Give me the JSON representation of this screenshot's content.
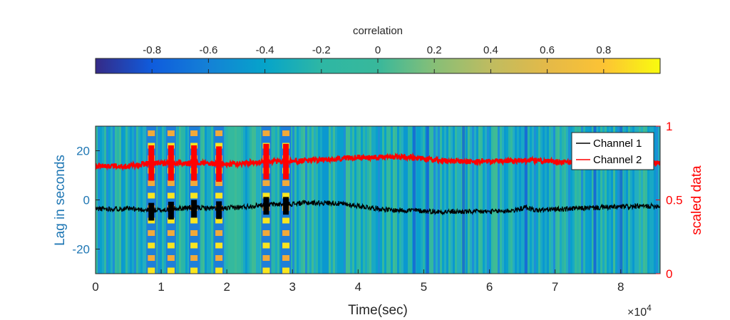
{
  "chart_data": [
    {
      "type": "heatmap",
      "colorbar": {
        "label": "correlation",
        "ticks": [
          -0.8,
          -0.6,
          -0.4,
          -0.2,
          0,
          0.2,
          0.4,
          0.6,
          0.8
        ],
        "tick_labels": [
          "-0.8",
          "-0.6",
          "-0.4",
          "-0.2",
          "0",
          "0.2",
          "0.4",
          "0.6",
          "0.8"
        ],
        "range": [
          -1,
          1
        ],
        "colormap": "parula",
        "position": "top"
      },
      "xlabel": "Time(sec)",
      "x_multiplier": "×10",
      "x_multiplier_exp": "4",
      "xlim": [
        0,
        86000
      ],
      "x_ticks": [
        0,
        10000,
        20000,
        30000,
        40000,
        50000,
        60000,
        70000,
        80000
      ],
      "x_tick_labels": [
        "0",
        "1",
        "2",
        "3",
        "4",
        "5",
        "6",
        "7",
        "8"
      ],
      "ylabel": "Lag in seconds",
      "ylim": [
        30,
        -30
      ],
      "y_ticks": [
        -20,
        0,
        20
      ],
      "y_tick_labels": [
        "-20",
        "0",
        "20"
      ],
      "y_direction": "reversed",
      "high_correlation_bursts_x": [
        8500,
        11500,
        15000,
        18800,
        26000,
        29000
      ],
      "blue_stripes_x": [
        48500,
        50500,
        56000,
        65500,
        76000,
        80000
      ]
    },
    {
      "type": "line",
      "y2label": "scaled data",
      "y2lim": [
        0,
        1
      ],
      "y2_ticks": [
        0,
        0.5,
        1
      ],
      "y2_tick_labels": [
        "0",
        "0.5",
        "1"
      ],
      "legend_position": "top-right",
      "series": [
        {
          "name": "Channel 1",
          "color": "#000000",
          "x": [
            0,
            5000,
            8500,
            10000,
            12000,
            15000,
            19000,
            22000,
            26000,
            29000,
            32000,
            36000,
            40000,
            45000,
            48000,
            52000,
            56000,
            60000,
            64000,
            65500,
            67000,
            72000,
            78000,
            86000
          ],
          "y": [
            0.44,
            0.44,
            0.43,
            0.43,
            0.44,
            0.45,
            0.44,
            0.45,
            0.47,
            0.47,
            0.48,
            0.48,
            0.46,
            0.43,
            0.43,
            0.42,
            0.42,
            0.42,
            0.43,
            0.45,
            0.43,
            0.44,
            0.45,
            0.46
          ]
        },
        {
          "name": "Channel 2",
          "color": "#ff0000",
          "x": [
            0,
            5000,
            8500,
            12000,
            16000,
            20000,
            26000,
            29000,
            34000,
            40000,
            44000,
            48000,
            52000,
            56000,
            60000,
            65000,
            70000,
            74000,
            78000,
            86000
          ],
          "y": [
            0.73,
            0.73,
            0.75,
            0.75,
            0.75,
            0.74,
            0.76,
            0.76,
            0.77,
            0.79,
            0.79,
            0.79,
            0.77,
            0.76,
            0.76,
            0.77,
            0.76,
            0.75,
            0.75,
            0.75
          ]
        }
      ]
    }
  ]
}
